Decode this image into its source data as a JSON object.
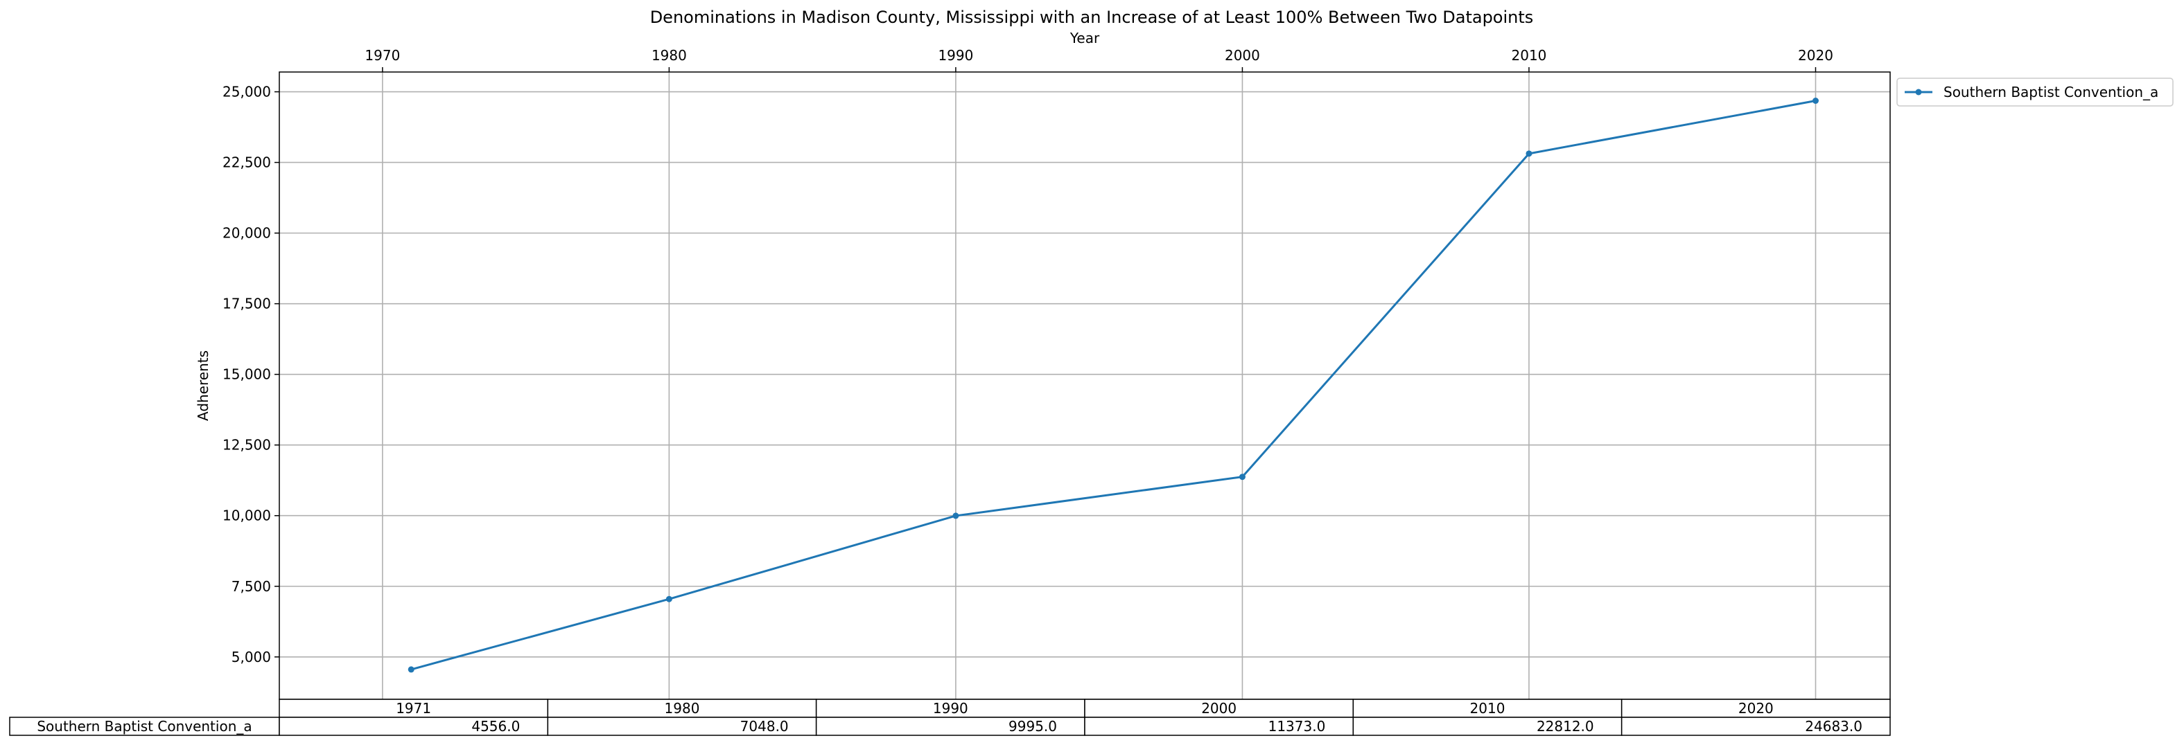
{
  "chart_data": {
    "type": "line",
    "title": "Denominations in Madison County, Mississippi with an Increase of at Least 100% Between Two Datapoints",
    "xlabel": "Year",
    "ylabel": "Adherents",
    "x_ticks": [
      "1970",
      "1980",
      "1990",
      "2000",
      "2010",
      "2020"
    ],
    "y_ticks": [
      "5,000",
      "7,500",
      "10,000",
      "12,500",
      "15,000",
      "17,500",
      "20,000",
      "22,500",
      "25,000"
    ],
    "xlim": [
      1966.4,
      2022.6
    ],
    "ylim": [
      3500,
      25700
    ],
    "x_tick_values": [
      1970,
      1980,
      1990,
      2000,
      2010,
      2020
    ],
    "y_tick_values": [
      5000,
      7500,
      10000,
      12500,
      15000,
      17500,
      20000,
      22500,
      25000
    ],
    "grid": true,
    "legend_position": "outside top-right",
    "x": [
      1971,
      1980,
      1990,
      2000,
      2010,
      2020
    ],
    "series": [
      {
        "name": "Southern Baptist Convention_a",
        "values": [
          4556,
          7048,
          9995,
          11373,
          22812,
          24683
        ],
        "color": "#1f77b4"
      }
    ],
    "table": {
      "columns": [
        "1971",
        "1980",
        "1990",
        "2000",
        "2010",
        "2020"
      ],
      "rows": [
        {
          "label": "Southern Baptist Convention_a",
          "cells": [
            "4556.0",
            "7048.0",
            "9995.0",
            "11373.0",
            "22812.0",
            "24683.0"
          ]
        }
      ]
    }
  }
}
